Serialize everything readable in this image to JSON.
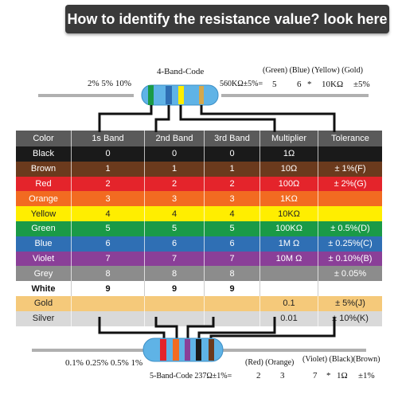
{
  "banner": "How to identify the resistance value? look here",
  "top": {
    "title": "4-Band-Code",
    "tolerances": "2% 5% 10%",
    "value": "560KΩ±5%=",
    "band_names": "(Green) (Blue)   (Yellow) (Gold)",
    "digit1": "5",
    "digit2": "6",
    "star": "*",
    "mult": "10KΩ",
    "tol": "±5%"
  },
  "bottom": {
    "tolerances": "0.1% 0.25% 0.5% 1%",
    "value": "5-Band-Code 237Ω±1%=",
    "band_names1": "(Red) (Orange)",
    "band_names2": "(Violet) (Black)(Brown)",
    "d1": "2",
    "d2": "3",
    "d3": "7",
    "star": "*",
    "mult": "1Ω",
    "tol": "±1%"
  },
  "table": {
    "headers": [
      "Color",
      "1s Band",
      "2nd  Band",
      "3rd  Band",
      "Multiplier",
      "Tolerance"
    ],
    "rows": [
      {
        "color": "Black",
        "b1": "0",
        "b2": "0",
        "b3": "0",
        "mult": "1Ω",
        "tol": "",
        "bg": "#1a1a1a"
      },
      {
        "color": "Brown",
        "b1": "1",
        "b2": "1",
        "b3": "1",
        "mult": "10Ω",
        "tol": "± 1%(F)",
        "bg": "#6b3a1d"
      },
      {
        "color": "Red",
        "b1": "2",
        "b2": "2",
        "b3": "2",
        "mult": "100Ω",
        "tol": "± 2%(G)",
        "bg": "#e4242b"
      },
      {
        "color": "Orange",
        "b1": "3",
        "b2": "3",
        "b3": "3",
        "mult": "1KΩ",
        "tol": "",
        "bg": "#f26b21"
      },
      {
        "color": "Yellow",
        "b1": "4",
        "b2": "4",
        "b3": "4",
        "mult": "10KΩ",
        "tol": "",
        "bg": "#ffee00"
      },
      {
        "color": "Green",
        "b1": "5",
        "b2": "5",
        "b3": "5",
        "mult": "100KΩ",
        "tol": "± 0.5%(D)",
        "bg": "#1a9a47"
      },
      {
        "color": "Blue",
        "b1": "6",
        "b2": "6",
        "b3": "6",
        "mult": "1M Ω",
        "tol": "± 0.25%(C)",
        "bg": "#2f6fb4"
      },
      {
        "color": "Violet",
        "b1": "7",
        "b2": "7",
        "b3": "7",
        "mult": "10M Ω",
        "tol": "± 0.10%(B)",
        "bg": "#8a3f98"
      },
      {
        "color": "Grey",
        "b1": "8",
        "b2": "8",
        "b3": "8",
        "mult": "",
        "tol": "± 0.05%",
        "bg": "#8c8c8c"
      },
      {
        "color": "White",
        "b1": "9",
        "b2": "9",
        "b3": "9",
        "mult": "",
        "tol": "",
        "bg": "#ffffff"
      },
      {
        "color": "Gold",
        "b1": "",
        "b2": "",
        "b3": "",
        "mult": "0.1",
        "tol": "± 5%(J)",
        "bg": "#f5c97a"
      },
      {
        "color": "Silver",
        "b1": "",
        "b2": "",
        "b3": "",
        "mult": "0.01",
        "tol": "± 10%(K)",
        "bg": "#d9d9d9"
      }
    ]
  },
  "colors": {
    "resistor_body": "#5fb3e6",
    "banner_bg": "#3a3a3a",
    "header_bg": "#5a5a5a",
    "grey_line": "#b0b0b0"
  }
}
